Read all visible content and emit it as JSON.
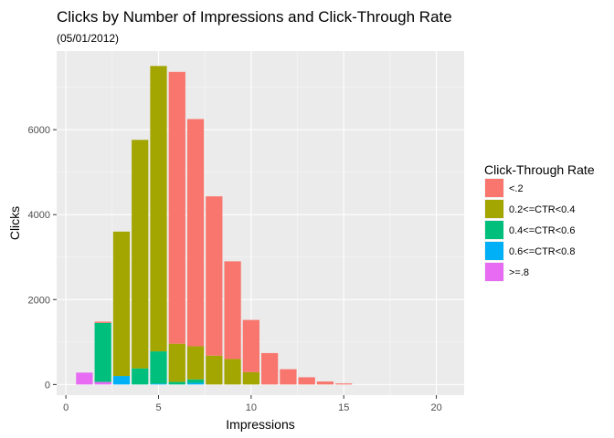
{
  "chart_data": {
    "type": "bar",
    "stacked": true,
    "title": "Clicks by Number of Impressions and Click-Through Rate",
    "subtitle": "(05/01/2012)",
    "xlabel": "Impressions",
    "ylabel": "Clicks",
    "xlim": [
      -0.5,
      21.5
    ],
    "ylim": [
      -250,
      7850
    ],
    "x_ticks": [
      0,
      5,
      10,
      15,
      20
    ],
    "y_ticks": [
      0,
      2000,
      4000,
      6000
    ],
    "grid": true,
    "legend_position": "right",
    "legend_title": "Click-Through Rate",
    "x": [
      1,
      2,
      3,
      4,
      5,
      6,
      7,
      8,
      9,
      10,
      11,
      12,
      13,
      14,
      15
    ],
    "series": [
      {
        "name": "<.2",
        "color": "#F8766D",
        "values": [
          0,
          30,
          0,
          0,
          0,
          6400,
          5350,
          3750,
          2300,
          1230,
          740,
          360,
          170,
          70,
          25
        ]
      },
      {
        "name": "0.2<=CTR<0.4",
        "color": "#A3A500",
        "values": [
          0,
          0,
          3400,
          5380,
          6720,
          900,
          780,
          680,
          600,
          290,
          0,
          0,
          0,
          0,
          0
        ]
      },
      {
        "name": "0.4<=CTR<0.6",
        "color": "#00BF7D",
        "values": [
          0,
          1390,
          0,
          380,
          760,
          60,
          80,
          0,
          0,
          0,
          0,
          0,
          0,
          0,
          0
        ]
      },
      {
        "name": "0.6<=CTR<0.8",
        "color": "#00B0F6",
        "values": [
          0,
          0,
          200,
          0,
          20,
          0,
          40,
          0,
          0,
          0,
          0,
          0,
          0,
          0,
          0
        ]
      },
      {
        "name": ">=.8",
        "color": "#E76BF3",
        "values": [
          280,
          60,
          0,
          0,
          0,
          0,
          0,
          0,
          0,
          0,
          0,
          0,
          0,
          0,
          0
        ]
      }
    ]
  }
}
